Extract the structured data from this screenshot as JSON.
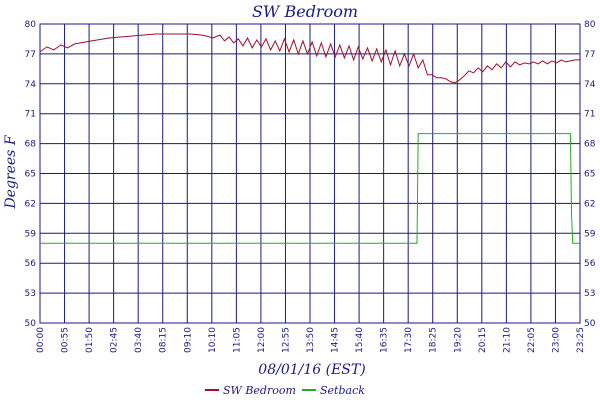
{
  "chart_data": {
    "type": "line",
    "title": "SW Bedroom",
    "xlabel": "08/01/16 (EST)",
    "ylabel": "Degrees F",
    "ylim": [
      50,
      80
    ],
    "y_ticks": [
      "50",
      "53",
      "56",
      "59",
      "62",
      "65",
      "68",
      "71",
      "74",
      "77",
      "80"
    ],
    "x_tick_labels": [
      "00:00",
      "00:55",
      "01:50",
      "02:45",
      "03:40",
      "08:15",
      "09:10",
      "10:10",
      "11:05",
      "12:00",
      "12:55",
      "13:50",
      "14:45",
      "15:40",
      "16:35",
      "17:30",
      "18:25",
      "19:20",
      "20:15",
      "21:10",
      "22:05",
      "23:00",
      "23:25"
    ],
    "x_range_hours": [
      0,
      23.4167
    ],
    "grid": true,
    "legend_position": "bottom",
    "colors": {
      "grid": "#1a1a80",
      "text": "#1a1a80",
      "background": "#ffffff"
    },
    "series": [
      {
        "name": "SW Bedroom",
        "color": "#a0102a",
        "x_hours": [
          0,
          0.3,
          0.6,
          0.9,
          1.2,
          1.5,
          2.0,
          2.5,
          3.0,
          3.5,
          4.0,
          4.5,
          5.0,
          5.5,
          6.0,
          6.5,
          7.0,
          7.2,
          7.5,
          7.8,
          8.0,
          8.2,
          8.4,
          8.6,
          8.8,
          9.0,
          9.2,
          9.4,
          9.6,
          9.8,
          10.0,
          10.2,
          10.4,
          10.6,
          10.8,
          11.0,
          11.2,
          11.4,
          11.6,
          11.8,
          12.0,
          12.2,
          12.4,
          12.6,
          12.8,
          13.0,
          13.2,
          13.4,
          13.6,
          13.8,
          14.0,
          14.2,
          14.4,
          14.6,
          14.8,
          15.0,
          15.2,
          15.4,
          15.6,
          15.8,
          16.0,
          16.2,
          16.4,
          16.6,
          16.8,
          17.0,
          17.2,
          17.4,
          17.6,
          17.8,
          18.0,
          18.2,
          18.4,
          18.6,
          18.8,
          19.0,
          19.2,
          19.4,
          19.6,
          19.8,
          20.0,
          20.2,
          20.4,
          20.6,
          20.8,
          21.0,
          21.2,
          21.4,
          21.6,
          21.8,
          22.0,
          22.2,
          22.4,
          22.6,
          22.8,
          23.0,
          23.2,
          23.4167
        ],
        "values": [
          77.2,
          77.7,
          77.4,
          77.9,
          77.6,
          78.0,
          78.2,
          78.4,
          78.6,
          78.7,
          78.8,
          78.9,
          79.0,
          79.0,
          79.0,
          79.0,
          78.9,
          78.8,
          78.6,
          78.9,
          78.3,
          78.7,
          78.1,
          78.5,
          77.8,
          78.6,
          77.6,
          78.4,
          77.7,
          78.5,
          77.4,
          78.3,
          77.3,
          78.5,
          77.2,
          78.4,
          77.0,
          78.3,
          77.0,
          78.2,
          76.8,
          78.1,
          76.7,
          78.0,
          76.7,
          77.9,
          76.6,
          77.8,
          76.4,
          77.7,
          76.5,
          77.6,
          76.3,
          77.5,
          76.2,
          77.4,
          75.9,
          77.3,
          75.8,
          77.0,
          75.8,
          77.0,
          75.6,
          76.4,
          74.9,
          74.9,
          74.6,
          74.6,
          74.5,
          74.2,
          74.1,
          74.4,
          74.8,
          75.3,
          75.1,
          75.6,
          75.2,
          75.8,
          75.4,
          76.0,
          75.6,
          76.2,
          75.7,
          76.2,
          75.9,
          76.1,
          76.0,
          76.2,
          76.0,
          76.3,
          76.0,
          76.3,
          76.1,
          76.4,
          76.2,
          76.3,
          76.4,
          76.4
        ]
      },
      {
        "name": "Setback",
        "color": "#2aa82a",
        "x_hours": [
          0,
          16.35,
          16.4,
          23.0,
          23.05,
          23.1,
          23.4167
        ],
        "values": [
          58,
          58,
          69,
          69,
          61,
          58,
          58
        ]
      }
    ]
  }
}
